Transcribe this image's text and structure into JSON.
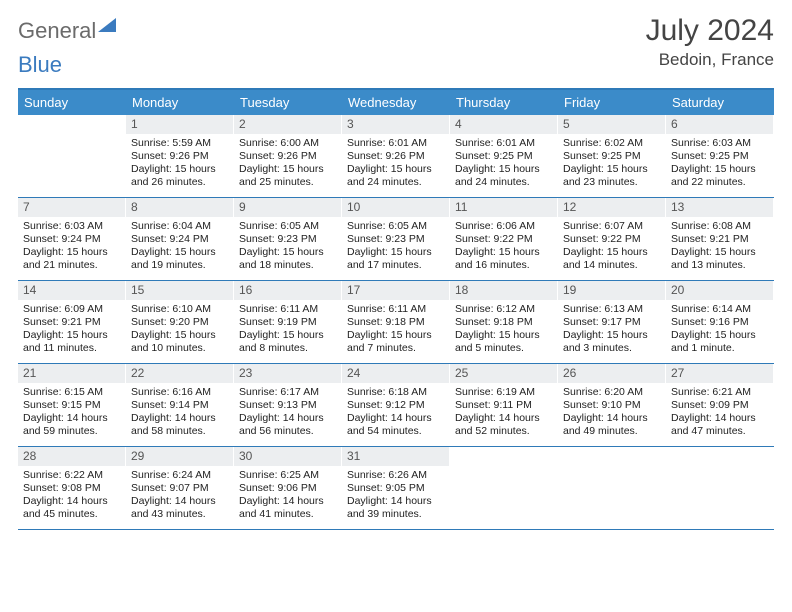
{
  "brand": {
    "general": "General",
    "blue": "Blue"
  },
  "title": "July 2024",
  "location": "Bedoin, France",
  "colors": {
    "header_bar": "#3b8bc9",
    "rule": "#2f7ab8",
    "daynum_bg": "#eceef0",
    "logo_gray": "#6b6b6b",
    "logo_blue": "#3b7bbf"
  },
  "days_of_week": [
    "Sunday",
    "Monday",
    "Tuesday",
    "Wednesday",
    "Thursday",
    "Friday",
    "Saturday"
  ],
  "weeks": [
    [
      {
        "n": "",
        "sr": "",
        "ss": "",
        "dl1": "",
        "dl2": ""
      },
      {
        "n": "1",
        "sr": "Sunrise: 5:59 AM",
        "ss": "Sunset: 9:26 PM",
        "dl1": "Daylight: 15 hours",
        "dl2": "and 26 minutes."
      },
      {
        "n": "2",
        "sr": "Sunrise: 6:00 AM",
        "ss": "Sunset: 9:26 PM",
        "dl1": "Daylight: 15 hours",
        "dl2": "and 25 minutes."
      },
      {
        "n": "3",
        "sr": "Sunrise: 6:01 AM",
        "ss": "Sunset: 9:26 PM",
        "dl1": "Daylight: 15 hours",
        "dl2": "and 24 minutes."
      },
      {
        "n": "4",
        "sr": "Sunrise: 6:01 AM",
        "ss": "Sunset: 9:25 PM",
        "dl1": "Daylight: 15 hours",
        "dl2": "and 24 minutes."
      },
      {
        "n": "5",
        "sr": "Sunrise: 6:02 AM",
        "ss": "Sunset: 9:25 PM",
        "dl1": "Daylight: 15 hours",
        "dl2": "and 23 minutes."
      },
      {
        "n": "6",
        "sr": "Sunrise: 6:03 AM",
        "ss": "Sunset: 9:25 PM",
        "dl1": "Daylight: 15 hours",
        "dl2": "and 22 minutes."
      }
    ],
    [
      {
        "n": "7",
        "sr": "Sunrise: 6:03 AM",
        "ss": "Sunset: 9:24 PM",
        "dl1": "Daylight: 15 hours",
        "dl2": "and 21 minutes."
      },
      {
        "n": "8",
        "sr": "Sunrise: 6:04 AM",
        "ss": "Sunset: 9:24 PM",
        "dl1": "Daylight: 15 hours",
        "dl2": "and 19 minutes."
      },
      {
        "n": "9",
        "sr": "Sunrise: 6:05 AM",
        "ss": "Sunset: 9:23 PM",
        "dl1": "Daylight: 15 hours",
        "dl2": "and 18 minutes."
      },
      {
        "n": "10",
        "sr": "Sunrise: 6:05 AM",
        "ss": "Sunset: 9:23 PM",
        "dl1": "Daylight: 15 hours",
        "dl2": "and 17 minutes."
      },
      {
        "n": "11",
        "sr": "Sunrise: 6:06 AM",
        "ss": "Sunset: 9:22 PM",
        "dl1": "Daylight: 15 hours",
        "dl2": "and 16 minutes."
      },
      {
        "n": "12",
        "sr": "Sunrise: 6:07 AM",
        "ss": "Sunset: 9:22 PM",
        "dl1": "Daylight: 15 hours",
        "dl2": "and 14 minutes."
      },
      {
        "n": "13",
        "sr": "Sunrise: 6:08 AM",
        "ss": "Sunset: 9:21 PM",
        "dl1": "Daylight: 15 hours",
        "dl2": "and 13 minutes."
      }
    ],
    [
      {
        "n": "14",
        "sr": "Sunrise: 6:09 AM",
        "ss": "Sunset: 9:21 PM",
        "dl1": "Daylight: 15 hours",
        "dl2": "and 11 minutes."
      },
      {
        "n": "15",
        "sr": "Sunrise: 6:10 AM",
        "ss": "Sunset: 9:20 PM",
        "dl1": "Daylight: 15 hours",
        "dl2": "and 10 minutes."
      },
      {
        "n": "16",
        "sr": "Sunrise: 6:11 AM",
        "ss": "Sunset: 9:19 PM",
        "dl1": "Daylight: 15 hours",
        "dl2": "and 8 minutes."
      },
      {
        "n": "17",
        "sr": "Sunrise: 6:11 AM",
        "ss": "Sunset: 9:18 PM",
        "dl1": "Daylight: 15 hours",
        "dl2": "and 7 minutes."
      },
      {
        "n": "18",
        "sr": "Sunrise: 6:12 AM",
        "ss": "Sunset: 9:18 PM",
        "dl1": "Daylight: 15 hours",
        "dl2": "and 5 minutes."
      },
      {
        "n": "19",
        "sr": "Sunrise: 6:13 AM",
        "ss": "Sunset: 9:17 PM",
        "dl1": "Daylight: 15 hours",
        "dl2": "and 3 minutes."
      },
      {
        "n": "20",
        "sr": "Sunrise: 6:14 AM",
        "ss": "Sunset: 9:16 PM",
        "dl1": "Daylight: 15 hours",
        "dl2": "and 1 minute."
      }
    ],
    [
      {
        "n": "21",
        "sr": "Sunrise: 6:15 AM",
        "ss": "Sunset: 9:15 PM",
        "dl1": "Daylight: 14 hours",
        "dl2": "and 59 minutes."
      },
      {
        "n": "22",
        "sr": "Sunrise: 6:16 AM",
        "ss": "Sunset: 9:14 PM",
        "dl1": "Daylight: 14 hours",
        "dl2": "and 58 minutes."
      },
      {
        "n": "23",
        "sr": "Sunrise: 6:17 AM",
        "ss": "Sunset: 9:13 PM",
        "dl1": "Daylight: 14 hours",
        "dl2": "and 56 minutes."
      },
      {
        "n": "24",
        "sr": "Sunrise: 6:18 AM",
        "ss": "Sunset: 9:12 PM",
        "dl1": "Daylight: 14 hours",
        "dl2": "and 54 minutes."
      },
      {
        "n": "25",
        "sr": "Sunrise: 6:19 AM",
        "ss": "Sunset: 9:11 PM",
        "dl1": "Daylight: 14 hours",
        "dl2": "and 52 minutes."
      },
      {
        "n": "26",
        "sr": "Sunrise: 6:20 AM",
        "ss": "Sunset: 9:10 PM",
        "dl1": "Daylight: 14 hours",
        "dl2": "and 49 minutes."
      },
      {
        "n": "27",
        "sr": "Sunrise: 6:21 AM",
        "ss": "Sunset: 9:09 PM",
        "dl1": "Daylight: 14 hours",
        "dl2": "and 47 minutes."
      }
    ],
    [
      {
        "n": "28",
        "sr": "Sunrise: 6:22 AM",
        "ss": "Sunset: 9:08 PM",
        "dl1": "Daylight: 14 hours",
        "dl2": "and 45 minutes."
      },
      {
        "n": "29",
        "sr": "Sunrise: 6:24 AM",
        "ss": "Sunset: 9:07 PM",
        "dl1": "Daylight: 14 hours",
        "dl2": "and 43 minutes."
      },
      {
        "n": "30",
        "sr": "Sunrise: 6:25 AM",
        "ss": "Sunset: 9:06 PM",
        "dl1": "Daylight: 14 hours",
        "dl2": "and 41 minutes."
      },
      {
        "n": "31",
        "sr": "Sunrise: 6:26 AM",
        "ss": "Sunset: 9:05 PM",
        "dl1": "Daylight: 14 hours",
        "dl2": "and 39 minutes."
      },
      {
        "n": "",
        "sr": "",
        "ss": "",
        "dl1": "",
        "dl2": ""
      },
      {
        "n": "",
        "sr": "",
        "ss": "",
        "dl1": "",
        "dl2": ""
      },
      {
        "n": "",
        "sr": "",
        "ss": "",
        "dl1": "",
        "dl2": ""
      }
    ]
  ]
}
